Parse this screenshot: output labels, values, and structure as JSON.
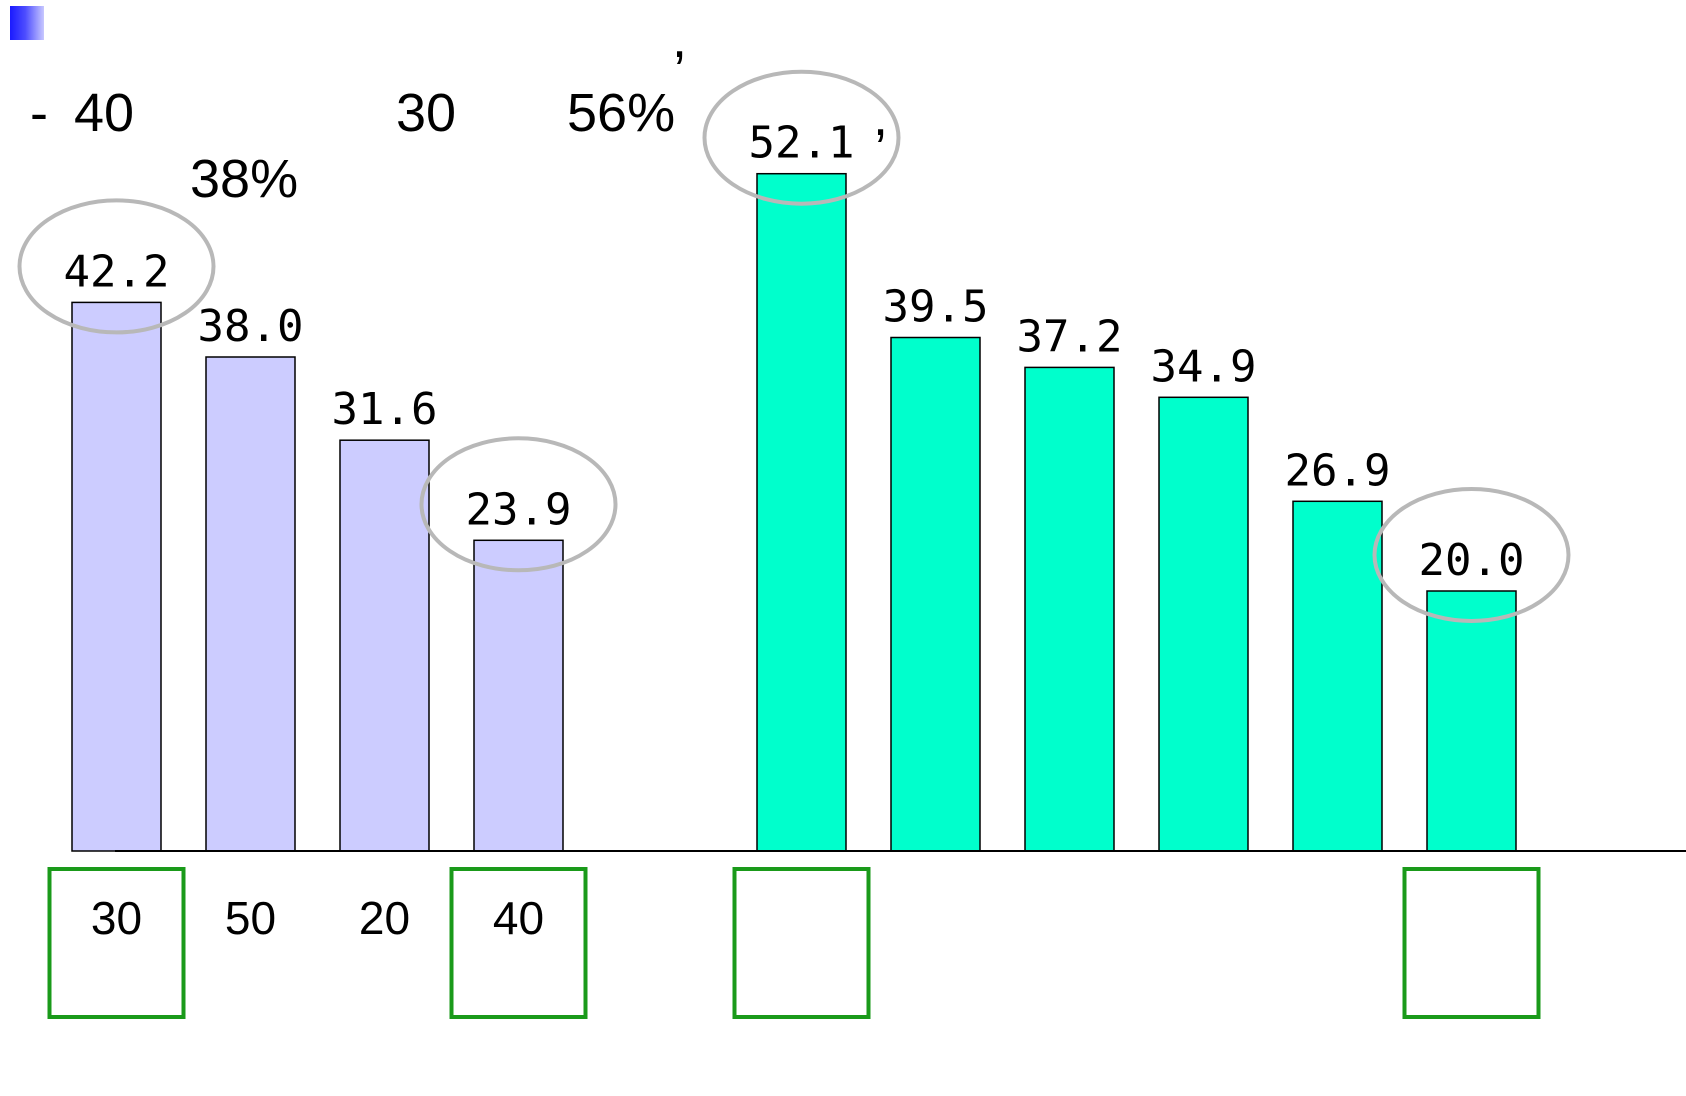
{
  "header": {
    "comma_1": ",",
    "dash": "-",
    "n40": "40",
    "n30": "30",
    "p56": "56%",
    "comma_2": ",",
    "p38": "38%"
  },
  "colors": {
    "group1_fill": "#ccccff",
    "group2_fill": "#00ffcc",
    "highlight_ellipse": "#b8b8b8",
    "highlight_box": "#1a9a1a",
    "bullet": "#1a1aff"
  },
  "chart_data": {
    "type": "bar",
    "ylim": [
      0,
      60
    ],
    "grid": false,
    "legend": "none",
    "groups": [
      {
        "categories": [
          "30",
          "50",
          "20",
          "40"
        ],
        "values": [
          42.2,
          38.0,
          31.6,
          23.9
        ],
        "value_labels": [
          "42.2",
          "38.0",
          "31.6",
          "23.9"
        ],
        "highlighted": [
          0,
          3
        ],
        "color": "#ccccff"
      },
      {
        "categories": [
          "",
          "",
          "",
          "",
          "",
          ""
        ],
        "values": [
          52.1,
          39.5,
          37.2,
          34.9,
          26.9,
          20.0
        ],
        "value_labels": [
          "52.1",
          "39.5",
          "37.2",
          "34.9",
          "26.9",
          "20.0"
        ],
        "highlighted": [
          0,
          5
        ],
        "color": "#00ffcc"
      }
    ]
  }
}
